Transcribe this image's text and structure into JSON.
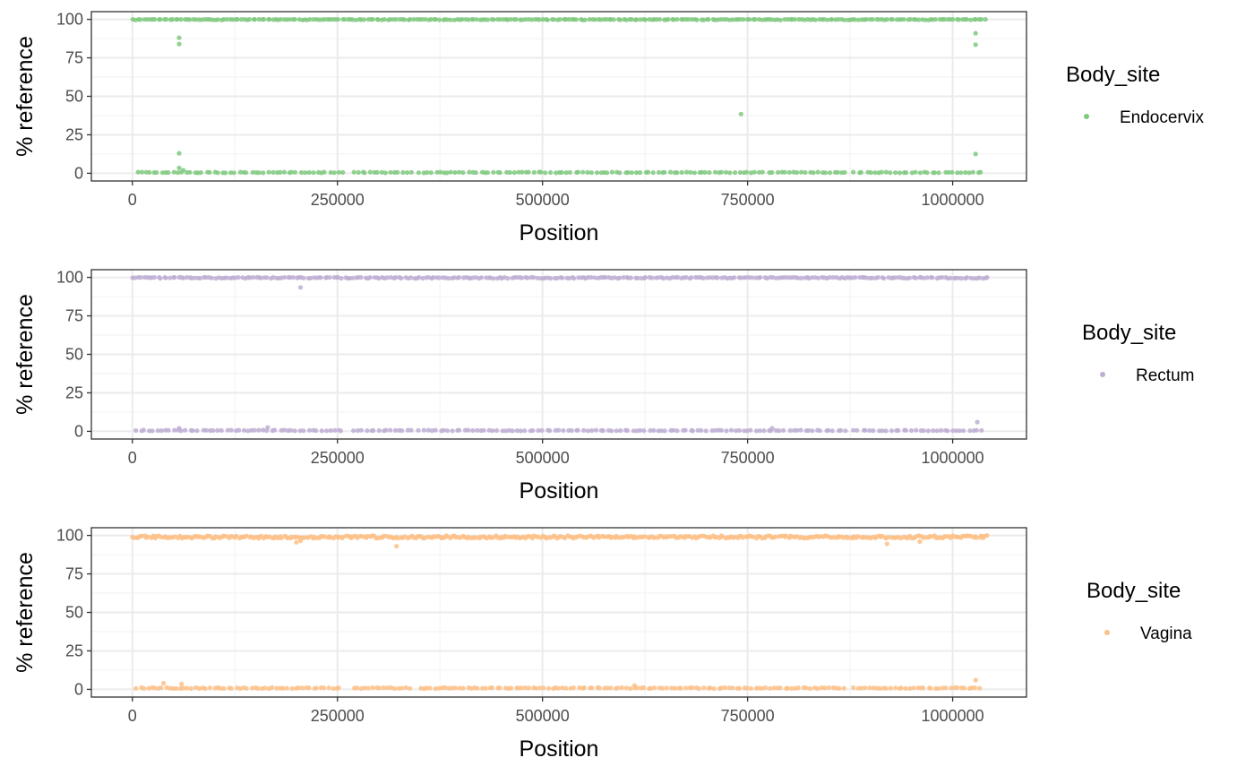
{
  "chart_data": [
    {
      "type": "scatter",
      "xlabel": "Position",
      "ylabel": "% reference",
      "xlim": [
        -50000,
        1090000
      ],
      "ylim": [
        -5,
        105
      ],
      "xticks": [
        0,
        250000,
        500000,
        750000,
        1000000
      ],
      "xtick_labels": [
        "0",
        "250000",
        "500000",
        "750000",
        "1000000"
      ],
      "yticks": [
        0,
        25,
        50,
        75,
        100
      ],
      "ytick_labels": [
        "0",
        "25",
        "50",
        "75",
        "100"
      ],
      "grid": true,
      "legend": {
        "title": "Body_site",
        "placement": "right"
      },
      "series": [
        {
          "name": "Endocervix",
          "color": "#7fc97f",
          "bands": [
            {
              "y": 100,
              "spread": 1.2,
              "ranges": [
                [
                  0,
                  1035000
                ]
              ],
              "step": 3500
            },
            {
              "y": 0.3,
              "spread": 1.0,
              "ranges": [
                [
                  5000,
                  255000
                ],
                [
                  270000,
                  340000
                ],
                [
                  350000,
                  870000
                ],
                [
                  880000,
                  1035000
                ]
              ],
              "step": 5000
            }
          ],
          "points": [
            {
              "x": 57000,
              "y": 88
            },
            {
              "x": 57000,
              "y": 84
            },
            {
              "x": 57000,
              "y": 13
            },
            {
              "x": 57000,
              "y": 3.5
            },
            {
              "x": 62000,
              "y": 2
            },
            {
              "x": 742000,
              "y": 38.5
            },
            {
              "x": 1028000,
              "y": 91
            },
            {
              "x": 1028000,
              "y": 83.5
            },
            {
              "x": 1028000,
              "y": 12.5
            },
            {
              "x": 1035000,
              "y": 100
            },
            {
              "x": 1040000,
              "y": 100
            }
          ]
        },
        {
          "name": "Rectum",
          "color": "#beaed4",
          "bands": [
            {
              "y": 99.8,
              "spread": 1.3,
              "ranges": [
                [
                  0,
                  1040000
                ]
              ],
              "step": 3500
            },
            {
              "y": 0.3,
              "spread": 1.0,
              "ranges": [
                [
                  5000,
                  255000
                ],
                [
                  270000,
                  340000
                ],
                [
                  350000,
                  870000
                ],
                [
                  880000,
                  1035000
                ]
              ],
              "step": 5000
            }
          ],
          "points": [
            {
              "x": 205000,
              "y": 93.5
            },
            {
              "x": 165000,
              "y": 2.5
            },
            {
              "x": 57000,
              "y": 2
            },
            {
              "x": 1030000,
              "y": 6
            },
            {
              "x": 780000,
              "y": 2
            },
            {
              "x": 1042000,
              "y": 100
            }
          ]
        },
        {
          "name": "Vagina",
          "color": "#fdc086",
          "bands": [
            {
              "y": 99.3,
              "spread": 2.2,
              "ranges": [
                [
                  0,
                  1040000
                ]
              ],
              "step": 2500
            },
            {
              "y": 0.5,
              "spread": 1.3,
              "ranges": [
                [
                  5000,
                  255000
                ],
                [
                  270000,
                  340000
                ],
                [
                  350000,
                  870000
                ],
                [
                  880000,
                  1035000
                ]
              ],
              "step": 4500
            }
          ],
          "points": [
            {
              "x": 200000,
              "y": 95.5
            },
            {
              "x": 205000,
              "y": 96.5
            },
            {
              "x": 322000,
              "y": 93
            },
            {
              "x": 920000,
              "y": 94.5
            },
            {
              "x": 960000,
              "y": 96
            },
            {
              "x": 38000,
              "y": 4
            },
            {
              "x": 60000,
              "y": 3.5
            },
            {
              "x": 612000,
              "y": 2.5
            },
            {
              "x": 1028000,
              "y": 6
            },
            {
              "x": 1042000,
              "y": 100
            }
          ]
        }
      ]
    }
  ]
}
